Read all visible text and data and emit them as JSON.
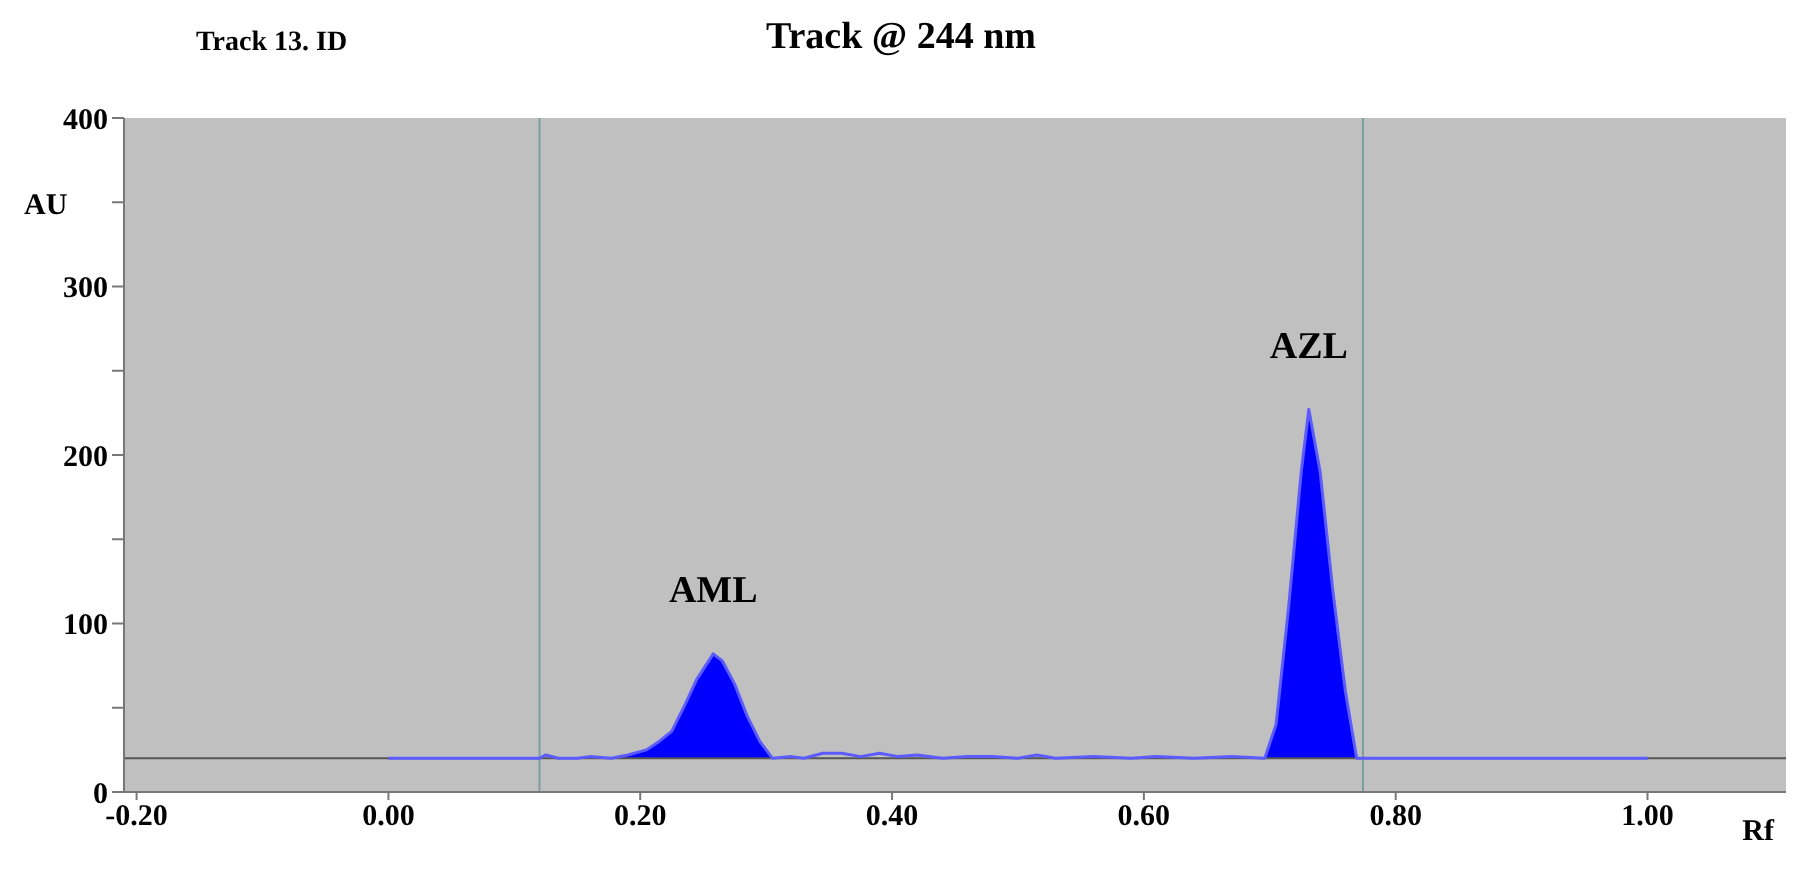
{
  "chart_data": {
    "type": "line",
    "title": "Track @ 244 nm",
    "xlabel": "Rf",
    "ylabel": "AU",
    "annotations": [
      "Track 13. ID",
      {
        "text": "AML",
        "x": 0.258,
        "y": 82
      },
      {
        "text": "AZL",
        "x": 0.731,
        "y": 227
      }
    ],
    "xlim": [
      -0.21,
      1.11
    ],
    "xticks": [
      {
        "value": -0.2,
        "label": "-0.20"
      },
      {
        "value": 0,
        "label": "0.00"
      },
      {
        "value": 0.2,
        "label": "0.20"
      },
      {
        "value": 0.4,
        "label": "0.40"
      },
      {
        "value": 0.6,
        "label": "0.60"
      },
      {
        "value": 0.8,
        "label": "0.80"
      },
      {
        "value": 1,
        "label": "1.00"
      }
    ],
    "ylim": [
      0,
      400
    ],
    "yticks": [
      0,
      {
        "value": 50,
        "label": null
      },
      100,
      {
        "value": 150,
        "label": null
      },
      200,
      {
        "value": 250,
        "label": null
      },
      300,
      {
        "value": 350,
        "label": null
      },
      400
    ],
    "grid": false,
    "marker": "none",
    "line_style": "solid",
    "ref_lines": [
      {
        "axis": "y",
        "value": 20,
        "color": "#555555"
      },
      {
        "axis": "x",
        "value": 0.12,
        "color": "#7a9e9e"
      },
      {
        "axis": "x",
        "value": 0.774,
        "color": "#7a9e9e"
      }
    ],
    "series": [
      {
        "color": "#5b5bff",
        "x": [
          0,
          0.12,
          0.125,
          0.135,
          0.15,
          0.16,
          0.177,
          0.19,
          0.205,
          0.215,
          0.225,
          0.235,
          0.245,
          0.258,
          0.265,
          0.275,
          0.285,
          0.295,
          0.305,
          0.32,
          0.33,
          0.345,
          0.36,
          0.375,
          0.39,
          0.405,
          0.42,
          0.44,
          0.46,
          0.48,
          0.5,
          0.515,
          0.53,
          0.56,
          0.59,
          0.61,
          0.64,
          0.67,
          0.696,
          0.705,
          0.715,
          0.725,
          0.731,
          0.74,
          0.75,
          0.76,
          0.769,
          0.8,
          1.0
        ],
        "values": [
          20,
          20,
          22,
          20,
          20,
          21,
          20,
          22,
          25,
          30,
          36,
          51,
          67,
          82,
          78,
          64,
          45,
          30,
          20,
          21,
          20,
          23,
          23,
          21,
          23,
          21,
          22,
          20,
          21,
          21,
          20,
          22,
          20,
          21,
          20,
          21,
          20,
          21,
          20,
          40,
          110,
          190,
          227,
          190,
          120,
          60,
          20,
          20,
          20
        ]
      },
      {
        "type": "area",
        "color": "#0000ff",
        "x": [
          0.177,
          0.19,
          0.205,
          0.215,
          0.225,
          0.235,
          0.245,
          0.258,
          0.265,
          0.275,
          0.285,
          0.295,
          0.305
        ],
        "values": [
          20,
          22,
          25,
          30,
          36,
          51,
          67,
          82,
          78,
          64,
          45,
          30,
          20
        ]
      },
      {
        "type": "area",
        "color": "#0000ff",
        "x": [
          0.696,
          0.705,
          0.715,
          0.725,
          0.731,
          0.74,
          0.75,
          0.76,
          0.769
        ],
        "values": [
          20,
          40,
          110,
          190,
          227,
          190,
          120,
          60,
          20
        ]
      }
    ]
  }
}
